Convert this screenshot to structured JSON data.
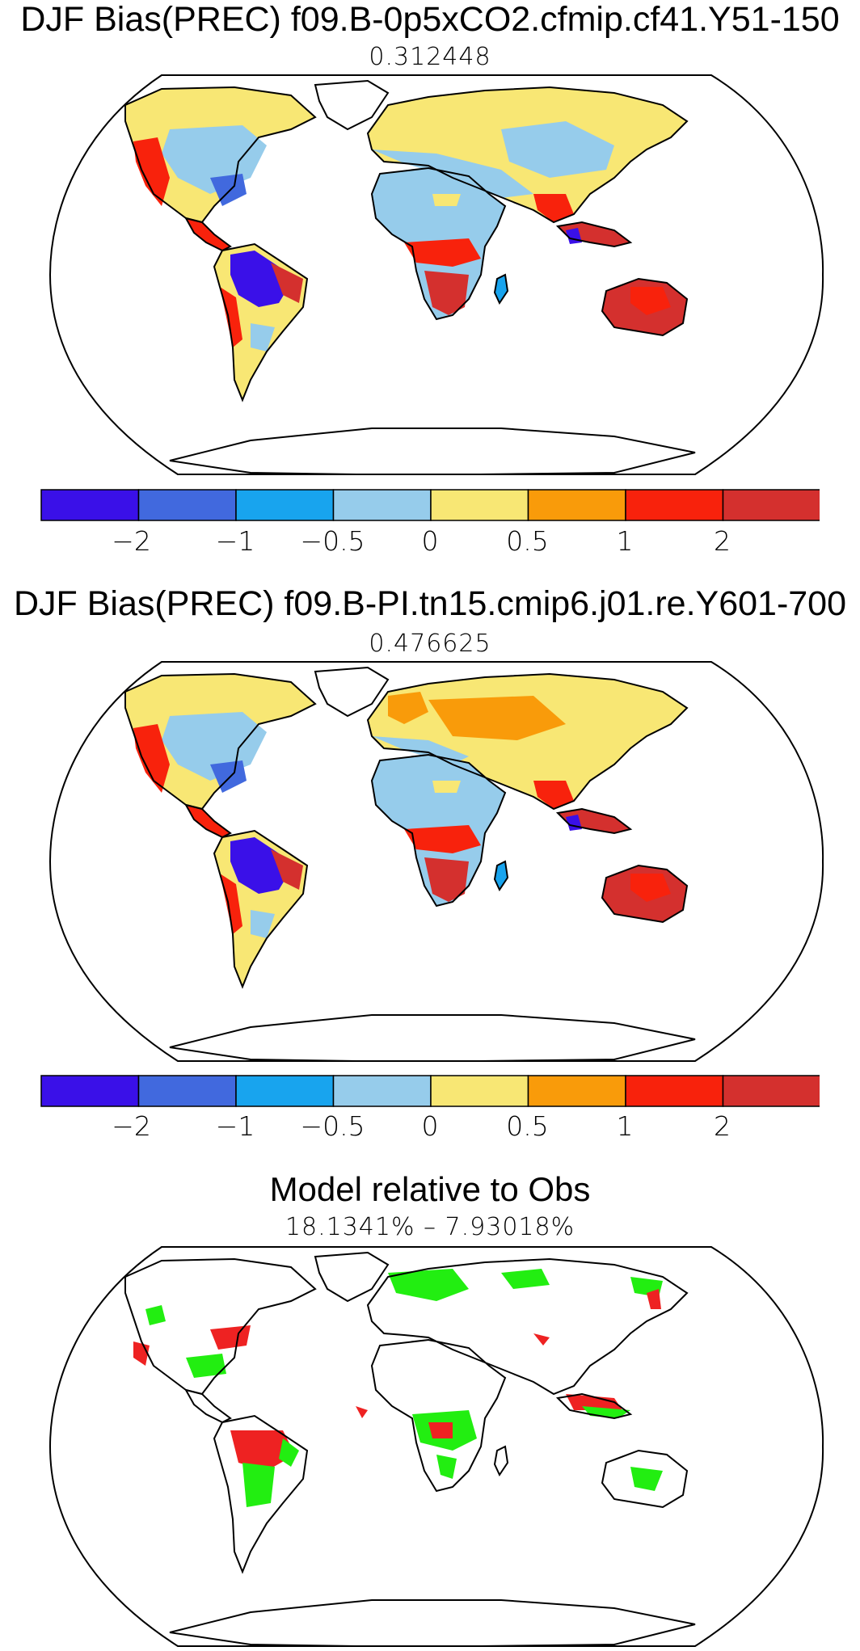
{
  "panels": [
    {
      "title": "DJF Bias(PREC) f09.B-0p5xCO2.cfmip.cf41.Y51-150",
      "subtitle": "0.312448",
      "variant": "a"
    },
    {
      "title": "DJF Bias(PREC) f09.B-PI.tn15.cmip6.j01.re.Y601-700",
      "subtitle": "0.476625",
      "variant": "b"
    },
    {
      "title": "Model relative to Obs",
      "subtitle": "18.1341% – 7.93018%",
      "variant": "c"
    }
  ],
  "colorbar": {
    "colors": [
      "#3a10e8",
      "#4169de",
      "#18a4ee",
      "#96cceb",
      "#f8e774",
      "#f99b0a",
      "#f8220c",
      "#d4302e"
    ],
    "ticks": [
      "−2",
      "−1",
      "−0.5",
      "0",
      "0.5",
      "1",
      "2"
    ]
  },
  "diff_colors": {
    "better": "#22ee11",
    "worse": "#ee2222"
  }
}
